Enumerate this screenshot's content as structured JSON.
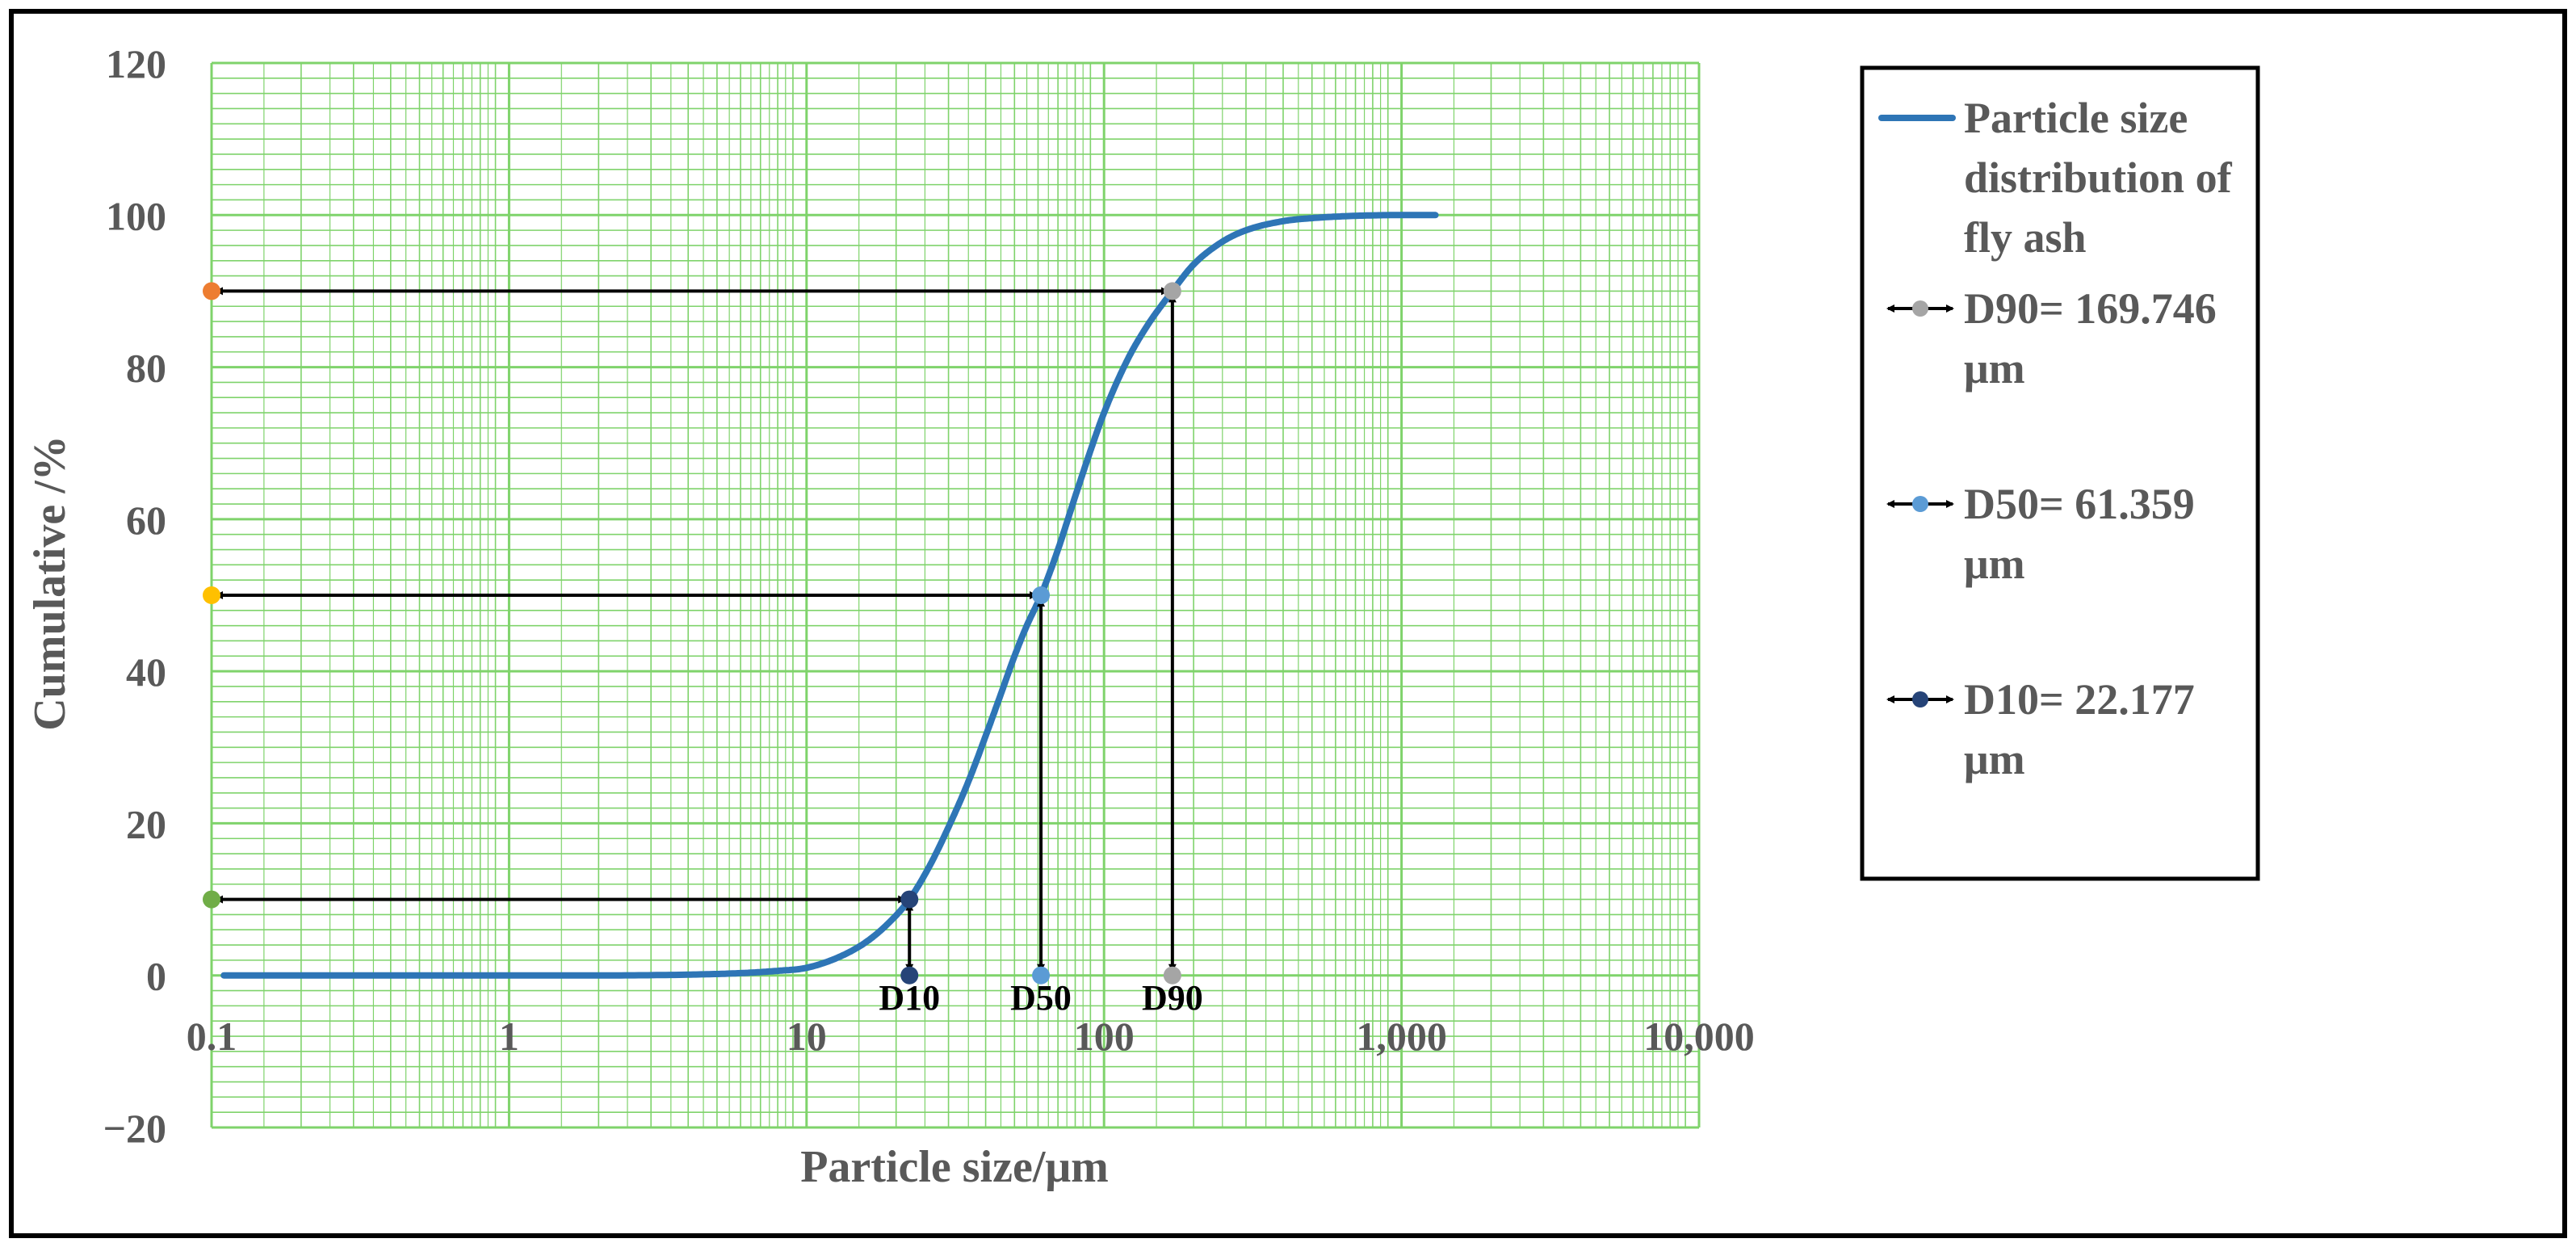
{
  "chart_data": {
    "type": "line",
    "title": "",
    "xlabel": "Particle size/μm",
    "ylabel": "Cumulative /%",
    "x_scale": "log",
    "xlim": [
      0.1,
      10000
    ],
    "ylim": [
      -20,
      120
    ],
    "x_tick_labels": [
      "0.1",
      "1",
      "10",
      "100",
      "1,000",
      "10,000"
    ],
    "x_tick_values": [
      0.1,
      1,
      10,
      100,
      1000,
      10000
    ],
    "y_ticks": [
      -20,
      0,
      20,
      40,
      60,
      80,
      100,
      120
    ],
    "y_tick_labels": [
      "−20",
      "0",
      "20",
      "40",
      "60",
      "80",
      "100",
      "120"
    ],
    "grid": true,
    "legend_position": "right",
    "series": [
      {
        "name": "Particle size distribution of fly ash",
        "color": "#2e75b6",
        "x": [
          0.11,
          0.3,
          1,
          2,
          4,
          6,
          8,
          10,
          13,
          16,
          19,
          22.177,
          26,
          30,
          35,
          40,
          45,
          50,
          55,
          61.359,
          70,
          80,
          90,
          100,
          120,
          140,
          169.746,
          200,
          250,
          300,
          400,
          500,
          700,
          1000,
          1300
        ],
        "y": [
          0,
          0,
          0,
          0,
          0.1,
          0.3,
          0.6,
          1,
          2.5,
          4.5,
          7,
          10,
          14.5,
          19.5,
          25.5,
          31.5,
          37,
          42,
          46,
          50,
          56,
          63,
          69,
          74,
          81,
          85.5,
          90,
          93.5,
          96.5,
          98,
          99.2,
          99.6,
          99.9,
          100,
          100
        ]
      }
    ],
    "markers": [
      {
        "name": "D90",
        "label": "D90= 169.746 μm",
        "x": 169.746,
        "y": 90,
        "color": "#a5a5a5",
        "y_axis_color": "#ed7d31"
      },
      {
        "name": "D50",
        "label": "D50= 61.359 μm",
        "x": 61.359,
        "y": 50,
        "color": "#5b9bd5",
        "y_axis_color": "#ffc000"
      },
      {
        "name": "D10",
        "label": "D10= 22.177 μm",
        "x": 22.177,
        "y": 10,
        "color": "#264478",
        "y_axis_color": "#70ad47"
      }
    ],
    "annotations": [
      "D10",
      "D50",
      "D90"
    ],
    "legend": {
      "series_label_lines": [
        "Particle size",
        "distribution of",
        "fly ash"
      ],
      "items": [
        {
          "lines": [
            "D90= 169.746",
            "μm"
          ],
          "color": "#a5a5a5"
        },
        {
          "lines": [
            "D50= 61.359",
            "μm"
          ],
          "color": "#5b9bd5"
        },
        {
          "lines": [
            "D10= 22.177",
            "μm"
          ],
          "color": "#264478"
        }
      ]
    },
    "colors": {
      "grid": "#7fd36b",
      "curve": "#2e75b6",
      "arrow": "#000000",
      "axis_text": "#595959"
    }
  }
}
